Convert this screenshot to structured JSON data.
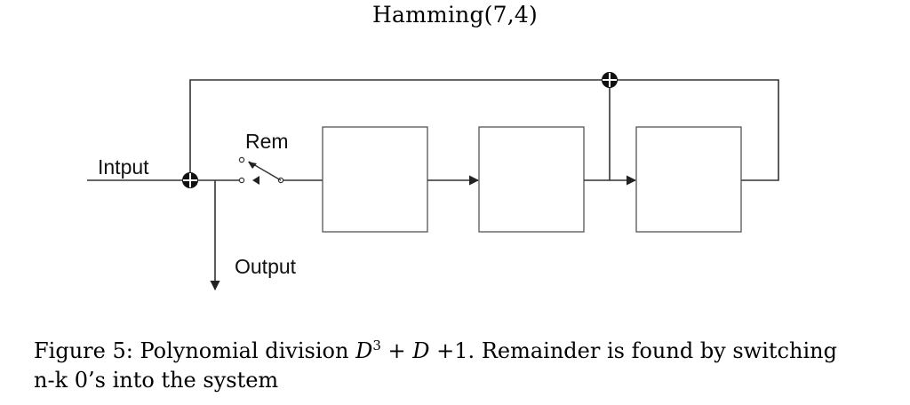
{
  "diagram": {
    "title": "Hamming(7,4)",
    "labels": {
      "input": "Intput",
      "output": "Output",
      "switch": "Rem"
    },
    "caption": {
      "prefix": "Figure 5:",
      "text_before": "Polynomial division",
      "poly_var1": "D",
      "poly_exp": "3",
      "poly_rest_plus1": "+",
      "poly_var2": "D",
      "poly_rest_plus2": "+",
      "poly_const": "1.",
      "text_after": "Remainder is found by switching",
      "line2": "n-k 0’s into the system"
    },
    "colors": {
      "line": "#333333",
      "box_stroke": "#555555"
    }
  }
}
